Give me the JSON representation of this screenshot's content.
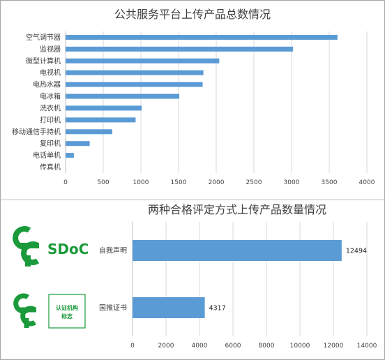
{
  "logos": {
    "sdoc": {
      "text": "SDoC",
      "color": "#1a9a3a"
    },
    "cert": {
      "line1": "认证机构",
      "line2": "标志",
      "color": "#1a9a3a"
    }
  },
  "colors": {
    "bar": "#5b9bd5",
    "grid": "#d9d9d9",
    "axis": "#bfbfbf"
  },
  "chart_data": [
    {
      "type": "bar",
      "orientation": "horizontal",
      "title": "公共服务平台上传产品总数情况",
      "categories": [
        "空气调节器",
        "监视器",
        "微型计算机",
        "电视机",
        "电热水器",
        "电冰箱",
        "洗衣机",
        "打印机",
        "移动通信手持机",
        "复印机",
        "电话单机",
        "传真机"
      ],
      "values": [
        3610,
        3020,
        2040,
        1830,
        1820,
        1510,
        1010,
        930,
        620,
        320,
        110,
        0
      ],
      "xlim": [
        0,
        4000
      ],
      "ticks": [
        0,
        500,
        1000,
        1500,
        2000,
        2500,
        3000,
        3500,
        4000
      ],
      "grid": true
    },
    {
      "type": "bar",
      "orientation": "horizontal",
      "title": "两种合格评定方式上传产品数量情况",
      "categories": [
        "自我声明",
        "国推证书"
      ],
      "values": [
        12494,
        4317
      ],
      "data_labels": [
        "12494",
        "4317"
      ],
      "xlim": [
        0,
        14000
      ],
      "ticks": [
        0,
        2000,
        4000,
        6000,
        8000,
        10000,
        12000,
        14000
      ],
      "grid": true
    }
  ]
}
